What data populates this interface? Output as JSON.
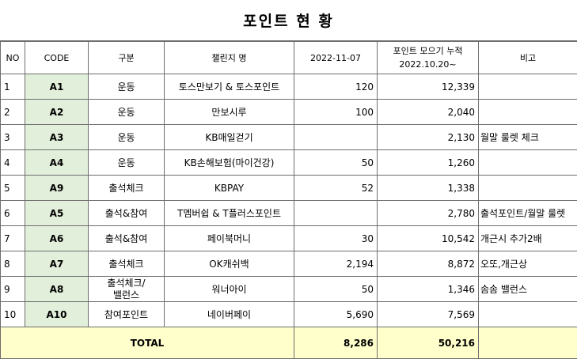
{
  "title": "포인트 현 황",
  "headers": {
    "no": "NO",
    "code": "CODE",
    "category": "구분",
    "challenge": "챌린지 명",
    "date": "2022-11-07",
    "accum_line1": "포인트 모으기 누적",
    "accum_line2": "2022.10.20~",
    "note": "비고"
  },
  "rows": [
    {
      "no": "1",
      "code": "A1",
      "category": "운동",
      "name": "토스만보기 & 토스포인트",
      "today": "120",
      "accum": "12,339",
      "note": ""
    },
    {
      "no": "2",
      "code": "A2",
      "category": "운동",
      "name": "만보시루",
      "today": "100",
      "accum": "2,040",
      "note": ""
    },
    {
      "no": "3",
      "code": "A3",
      "category": "운동",
      "name": "KB매일걷기",
      "today": "",
      "accum": "2,130",
      "note": "월말 룰렛 체크"
    },
    {
      "no": "4",
      "code": "A4",
      "category": "운동",
      "name": "KB손해보험(마이건강)",
      "today": "50",
      "accum": "1,260",
      "note": ""
    },
    {
      "no": "5",
      "code": "A9",
      "category": "출석체크",
      "name": "KBPAY",
      "today": "52",
      "accum": "1,338",
      "note": ""
    },
    {
      "no": "6",
      "code": "A5",
      "category": "출석&참여",
      "name": "T멤버쉽 & T플러스포인트",
      "today": "",
      "accum": "2,780",
      "note": "출석포인트/월말 룰렛"
    },
    {
      "no": "7",
      "code": "A6",
      "category": "출석&참여",
      "name": "페이북머니",
      "today": "30",
      "accum": "10,542",
      "note": "개근시 추가2배"
    },
    {
      "no": "8",
      "code": "A7",
      "category": "출석체크",
      "name": "OK캐쉬백",
      "today": "2,194",
      "accum": "8,872",
      "note": "오또,개근상"
    },
    {
      "no": "9",
      "code": "A8",
      "category": "출석체크/\n밸런스",
      "name": "워너아이",
      "today": "50",
      "accum": "1,346",
      "note": "솜솜 밸런스"
    },
    {
      "no": "10",
      "code": "A10",
      "category": "참여포인트",
      "name": "네이버페이",
      "today": "5,690",
      "accum": "7,569",
      "note": ""
    }
  ],
  "total": {
    "label": "TOTAL",
    "today": "8,286",
    "accum": "50,216"
  },
  "colors": {
    "code_bg": "#e2efda",
    "total_bg": "#ffffcc",
    "border": "#6e6e6e"
  }
}
